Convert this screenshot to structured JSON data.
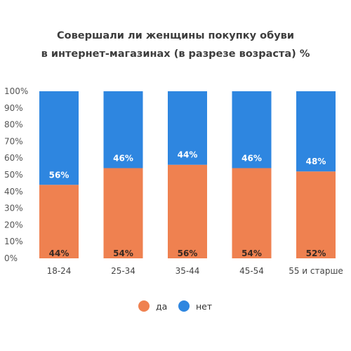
{
  "chart_data": {
    "type": "bar",
    "stacked": true,
    "title_lines": [
      "Совершали ли женщины покупку обуви",
      "в интернет-магазинах (в разрезе возраста) %"
    ],
    "xlabel": "",
    "ylabel": "",
    "ylim": [
      0,
      100
    ],
    "y_ticks": [
      "0%",
      "10%",
      "20%",
      "30%",
      "40%",
      "50%",
      "60%",
      "70%",
      "80%",
      "90%",
      "100%"
    ],
    "grid": false,
    "legend_position": "bottom",
    "categories": [
      "18-24",
      "25-34",
      "35-44",
      "45-54",
      "55 и старше"
    ],
    "series": [
      {
        "name": "да",
        "color": "#ef8150",
        "values": [
          44,
          54,
          56,
          54,
          52
        ],
        "labels": [
          "44%",
          "54%",
          "56%",
          "54%",
          "52%"
        ],
        "label_color": "#3a2a22"
      },
      {
        "name": "нет",
        "color": "#2e86e0",
        "values": [
          56,
          46,
          44,
          46,
          48
        ],
        "labels": [
          "56%",
          "46%",
          "44%",
          "46%",
          "48%"
        ],
        "label_color": "#ffffff"
      }
    ]
  }
}
